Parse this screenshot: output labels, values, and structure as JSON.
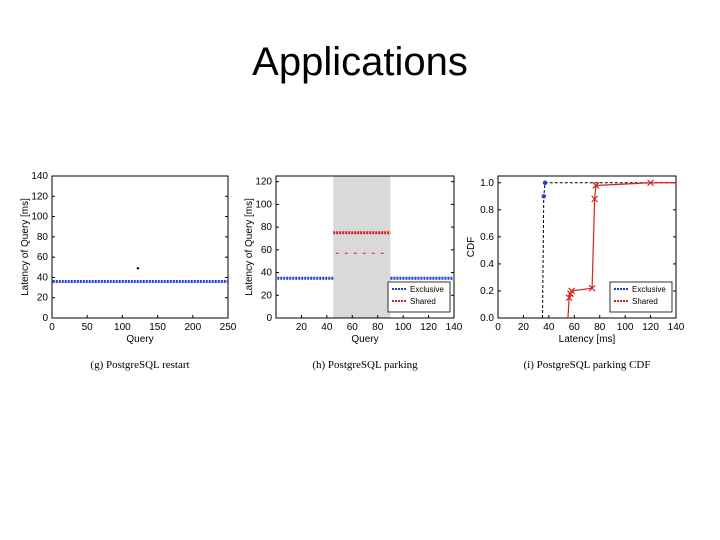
{
  "slide": {
    "title": "Applications"
  },
  "chart_data": [
    {
      "type": "line",
      "caption": "(g) PostgreSQL restart",
      "xlabel": "Query",
      "ylabel": "Latency of Query [ms]",
      "xlim": [
        0,
        250
      ],
      "ylim": [
        0,
        140
      ],
      "xticks": [
        0,
        50,
        100,
        150,
        200,
        250
      ],
      "yticks": [
        0,
        20,
        40,
        60,
        80,
        100,
        120,
        140
      ],
      "colors": {
        "Exclusive": "#1f3fd0"
      },
      "series": [
        {
          "values_constant": 36,
          "x_start": 1,
          "x_end": 250,
          "spike": {
            "x": 122,
            "y": 49
          }
        }
      ]
    },
    {
      "type": "line",
      "caption": "(h) PostgreSQL parking",
      "xlabel": "Query",
      "ylabel": "Latency of Query [ms]",
      "xlim": [
        0,
        140
      ],
      "ylim": [
        0,
        125
      ],
      "xticks": [
        20,
        40,
        60,
        80,
        100,
        120,
        140
      ],
      "yticks": [
        0,
        20,
        40,
        60,
        80,
        100,
        120
      ],
      "shaded_region": [
        45,
        90
      ],
      "legend": {
        "position": "bottom-right",
        "entries": [
          "Exclusive",
          "Shared"
        ]
      },
      "colors": {
        "Exclusive": "#1f3fd0",
        "Shared": "#d62020",
        "shade": "#d9d9d9"
      },
      "series": [
        {
          "name": "Exclusive",
          "segments": [
            {
              "x": [
                1,
                45
              ],
              "y": 35
            },
            {
              "x": [
                90,
                140
              ],
              "y": 35
            }
          ]
        },
        {
          "name": "Shared",
          "segments": [
            {
              "x": [
                45,
                90
              ],
              "y": 75
            },
            {
              "x": [
                47,
                88
              ],
              "y": 57
            }
          ]
        }
      ]
    },
    {
      "type": "line",
      "caption": "(i) PostgreSQL parking CDF",
      "xlabel": "Latency [ms]",
      "ylabel": "CDF",
      "xlim": [
        0,
        140
      ],
      "ylim": [
        0,
        1.05
      ],
      "xticks": [
        0,
        20,
        40,
        60,
        80,
        100,
        120,
        140
      ],
      "yticks": [
        "0.0",
        "0.2",
        "0.4",
        "0.6",
        "0.8",
        "1.0"
      ],
      "legend": {
        "position": "bottom-right",
        "entries": [
          "Exclusive",
          "Shared"
        ]
      },
      "colors": {
        "Exclusive": "#1f3fd0",
        "Shared": "#d62020"
      },
      "series": [
        {
          "name": "Exclusive",
          "x": [
            35,
            36,
            37,
            140
          ],
          "y": [
            0.0,
            0.9,
            1.0,
            1.0
          ]
        },
        {
          "name": "Shared",
          "x": [
            55,
            56,
            57,
            58,
            74,
            76,
            77,
            120,
            140
          ],
          "y": [
            0.0,
            0.15,
            0.18,
            0.2,
            0.22,
            0.88,
            0.98,
            1.0,
            1.0
          ]
        }
      ]
    }
  ]
}
